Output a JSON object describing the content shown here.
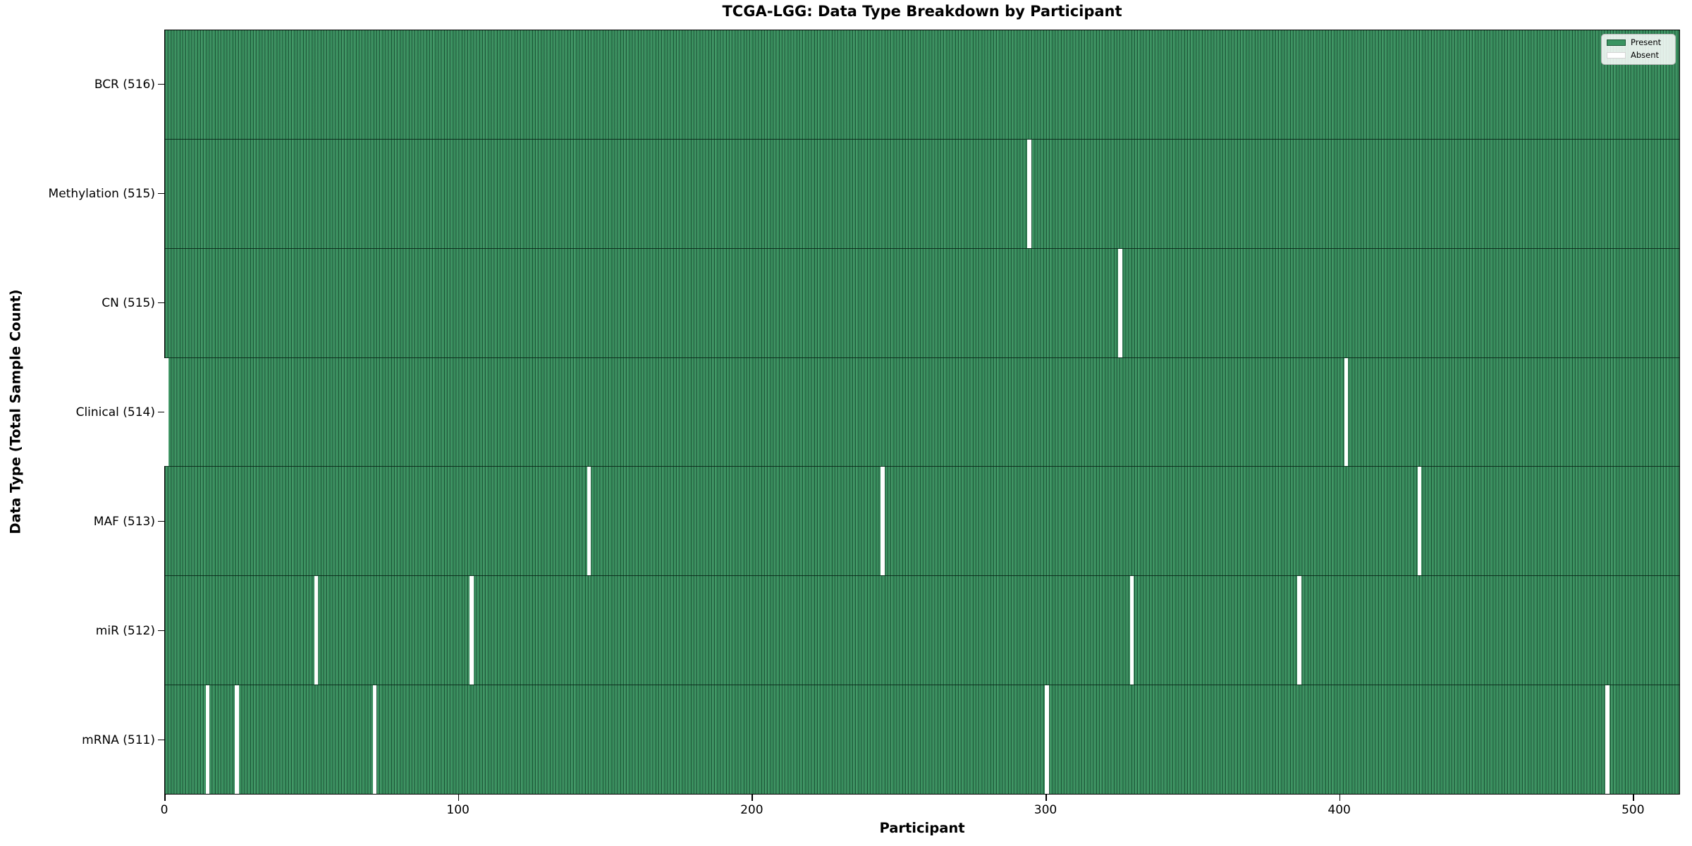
{
  "chart_data": {
    "type": "heatmap",
    "title": "TCGA-LGG: Data Type Breakdown by Participant",
    "xlabel": "Participant",
    "ylabel": "Data Type (Total Sample Count)",
    "x_ticks": [
      0,
      100,
      200,
      300,
      400,
      500
    ],
    "x_range": [
      0,
      516
    ],
    "n_participants": 516,
    "grid": false,
    "legend": {
      "position": "upper-right",
      "entries": [
        {
          "label": "Present",
          "color": "#3a9461",
          "edge": "#1d5737"
        },
        {
          "label": "Absent",
          "color": "#ffffff",
          "edge": "#d4d4d4"
        }
      ]
    },
    "colors": {
      "present": "#3a9461",
      "absent": "#ffffff",
      "cell_edge": "#1b4f31",
      "row_divider": "#0a2214"
    },
    "categories": [
      "BCR (516)",
      "Methylation (515)",
      "CN (515)",
      "Clinical (514)",
      "MAF (513)",
      "miR (512)",
      "mRNA (511)"
    ],
    "rows": [
      {
        "data_type": "BCR",
        "label": "BCR (516)",
        "total_samples": 516,
        "absent_participants": []
      },
      {
        "data_type": "Methylation",
        "label": "Methylation (515)",
        "total_samples": 515,
        "absent_participants": [
          294
        ]
      },
      {
        "data_type": "CN",
        "label": "CN (515)",
        "total_samples": 515,
        "absent_participants": [
          325
        ]
      },
      {
        "data_type": "Clinical",
        "label": "Clinical (514)",
        "total_samples": 514,
        "absent_participants": [
          0,
          402
        ]
      },
      {
        "data_type": "MAF",
        "label": "MAF (513)",
        "total_samples": 513,
        "absent_participants": [
          144,
          244,
          427
        ]
      },
      {
        "data_type": "miR",
        "label": "miR (512)",
        "total_samples": 512,
        "absent_participants": [
          51,
          104,
          329,
          386
        ]
      },
      {
        "data_type": "mRNA",
        "label": "mRNA (511)",
        "total_samples": 511,
        "absent_participants": [
          14,
          24,
          71,
          300,
          491
        ]
      }
    ]
  }
}
